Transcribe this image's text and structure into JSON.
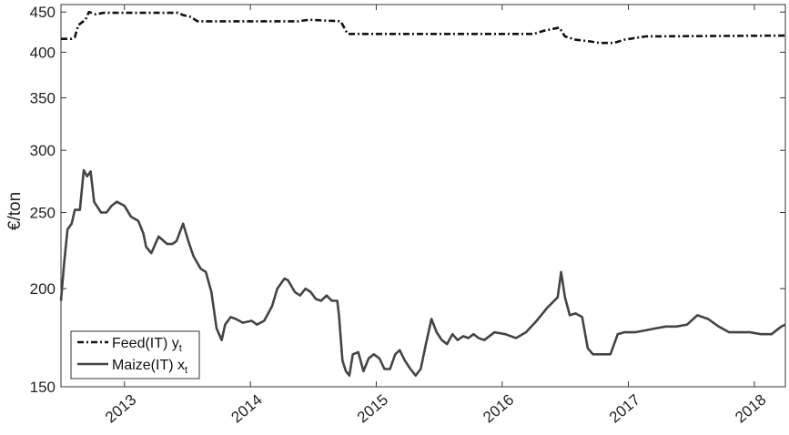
{
  "chart_data": {
    "type": "line",
    "ylabel": "€/ton",
    "xlabel": "",
    "y_scale": "log",
    "ylim": [
      150,
      460
    ],
    "xlim": [
      "2012-07-01",
      "2018-04-01"
    ],
    "y_ticks": [
      150,
      200,
      250,
      300,
      350,
      400,
      450
    ],
    "x_ticks": [
      "2013",
      "2014",
      "2015",
      "2016",
      "2017",
      "2018"
    ],
    "grid": false,
    "legend_position": "bottom-left",
    "colors": {
      "feed": "#111111",
      "maize": "#444444"
    },
    "series": [
      {
        "key": "feed",
        "name": "Feed(IT) y",
        "subscript": "t",
        "style": "dashed",
        "x": [
          "2012-07-01",
          "2012-08-01",
          "2012-08-10",
          "2012-08-20",
          "2012-09-10",
          "2012-09-20",
          "2012-10-10",
          "2012-11-01",
          "2013-05-15",
          "2013-06-05",
          "2013-06-20",
          "2013-07-10",
          "2013-08-01",
          "2014-05-20",
          "2014-06-20",
          "2014-09-20",
          "2014-10-10",
          "2015-02-01",
          "2016-04-01",
          "2016-05-01",
          "2016-06-15",
          "2016-07-01",
          "2016-08-01",
          "2016-09-10",
          "2016-10-10",
          "2016-11-20",
          "2016-12-20",
          "2017-01-20",
          "2017-02-20",
          "2018-04-01"
        ],
        "y": [
          416,
          416,
          418,
          433,
          440,
          450,
          447,
          449,
          449,
          449,
          446,
          444,
          438,
          438,
          440,
          438,
          422,
          422,
          422,
          426,
          430,
          419,
          415,
          413,
          411,
          411,
          415,
          417,
          419,
          420
        ]
      },
      {
        "key": "maize",
        "name": "Maize(IT) x",
        "subscript": "t",
        "style": "solid",
        "x": [
          "2012-07-01",
          "2012-07-10",
          "2012-07-20",
          "2012-08-01",
          "2012-08-10",
          "2012-08-25",
          "2012-09-05",
          "2012-09-15",
          "2012-09-25",
          "2012-10-05",
          "2012-10-25",
          "2012-11-10",
          "2012-11-25",
          "2012-12-10",
          "2013-01-01",
          "2013-01-20",
          "2013-02-10",
          "2013-02-25",
          "2013-03-05",
          "2013-03-20",
          "2013-04-10",
          "2013-05-05",
          "2013-05-20",
          "2013-06-01",
          "2013-06-20",
          "2013-07-05",
          "2013-07-20",
          "2013-08-10",
          "2013-08-25",
          "2013-09-10",
          "2013-09-25",
          "2013-10-10",
          "2013-10-20",
          "2013-11-05",
          "2013-11-20",
          "2013-12-10",
          "2014-01-05",
          "2014-01-20",
          "2014-02-10",
          "2014-03-05",
          "2014-03-20",
          "2014-04-10",
          "2014-04-20",
          "2014-05-10",
          "2014-05-25",
          "2014-06-10",
          "2014-06-25",
          "2014-07-10",
          "2014-07-25",
          "2014-08-10",
          "2014-08-25",
          "2014-09-10",
          "2014-09-15",
          "2014-09-25",
          "2014-10-05",
          "2014-10-15",
          "2014-10-25",
          "2014-11-10",
          "2014-11-25",
          "2014-12-10",
          "2014-12-25",
          "2015-01-10",
          "2015-01-25",
          "2015-02-10",
          "2015-02-25",
          "2015-03-10",
          "2015-03-25",
          "2015-04-10",
          "2015-04-25",
          "2015-05-10",
          "2015-05-25",
          "2015-06-10",
          "2015-06-25",
          "2015-07-10",
          "2015-07-25",
          "2015-08-10",
          "2015-08-25",
          "2015-09-10",
          "2015-09-25",
          "2015-10-10",
          "2015-10-25",
          "2015-11-10",
          "2015-12-10",
          "2016-01-10",
          "2016-02-10",
          "2016-03-10",
          "2016-04-10",
          "2016-05-10",
          "2016-06-10",
          "2016-06-20",
          "2016-07-01",
          "2016-07-15",
          "2016-08-01",
          "2016-08-20",
          "2016-09-05",
          "2016-09-20",
          "2016-10-10",
          "2016-11-10",
          "2016-12-01",
          "2016-12-20",
          "2017-01-20",
          "2017-02-20",
          "2017-03-20",
          "2017-04-20",
          "2017-05-20",
          "2017-06-20",
          "2017-07-20",
          "2017-08-20",
          "2017-09-20",
          "2017-10-20",
          "2017-11-20",
          "2017-12-20",
          "2018-01-20",
          "2018-02-20",
          "2018-03-20",
          "2018-04-01"
        ],
        "y": [
          193,
          215,
          238,
          242,
          252,
          252,
          283,
          278,
          282,
          258,
          250,
          250,
          255,
          258,
          255,
          247,
          244,
          235,
          226,
          222,
          233,
          228,
          228,
          230,
          242,
          230,
          220,
          212,
          210,
          198,
          178,
          172,
          180,
          184,
          183,
          181,
          182,
          180,
          182,
          190,
          200,
          206,
          205,
          198,
          196,
          200,
          198,
          194,
          193,
          196,
          193,
          193,
          185,
          162,
          157,
          155,
          165,
          166,
          157,
          163,
          165,
          163,
          158,
          158,
          165,
          167,
          162,
          158,
          155,
          158,
          170,
          183,
          176,
          172,
          170,
          175,
          172,
          174,
          173,
          175,
          173,
          172,
          176,
          175,
          173,
          176,
          182,
          189,
          195,
          210,
          195,
          185,
          186,
          184,
          168,
          165,
          165,
          165,
          175,
          176,
          176,
          177,
          178,
          179,
          179,
          180,
          185,
          183,
          179,
          176,
          176,
          176,
          175,
          175,
          179,
          180
        ]
      }
    ]
  }
}
